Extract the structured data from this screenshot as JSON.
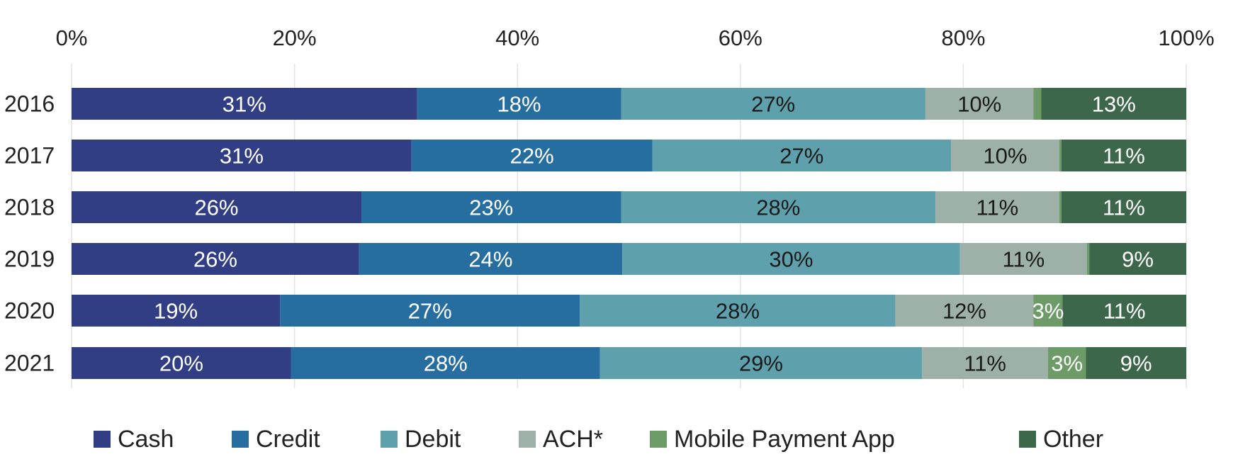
{
  "chart_data": {
    "type": "bar",
    "orientation": "horizontal",
    "stacked": true,
    "title": "",
    "xlabel": "",
    "ylabel": "",
    "xlim": [
      0,
      100
    ],
    "x_ticks": [
      "0%",
      "20%",
      "40%",
      "60%",
      "80%",
      "100%"
    ],
    "x_axis_position": "top",
    "grid": true,
    "legend_position": "bottom",
    "categories": [
      "2016",
      "2017",
      "2018",
      "2019",
      "2020",
      "2021"
    ],
    "series": [
      {
        "name": "Cash",
        "color": "#313e83",
        "label_color": "#ffffff",
        "values": [
          31,
          30.5,
          26,
          25.8,
          18.7,
          19.7
        ],
        "labels": [
          "31%",
          "31%",
          "26%",
          "26%",
          "19%",
          "20%"
        ]
      },
      {
        "name": "Credit",
        "color": "#276ea0",
        "label_color": "#ffffff",
        "values": [
          18.3,
          21.6,
          23.3,
          23.6,
          26.9,
          27.7
        ],
        "labels": [
          "18%",
          "22%",
          "23%",
          "24%",
          "27%",
          "28%"
        ]
      },
      {
        "name": "Debit",
        "color": "#5ea1ac",
        "label_color": "#1a1a1a",
        "values": [
          27.3,
          26.8,
          28.2,
          30.3,
          28.3,
          28.9
        ],
        "labels": [
          "27%",
          "27%",
          "28%",
          "30%",
          "28%",
          "29%"
        ]
      },
      {
        "name": "ACH*",
        "color": "#9eb1a8",
        "label_color": "#1a1a1a",
        "values": [
          9.7,
          9.7,
          11.1,
          11.4,
          12.4,
          11.3
        ],
        "labels": [
          "10%",
          "10%",
          "11%",
          "11%",
          "12%",
          "11%"
        ]
      },
      {
        "name": "Mobile Payment App",
        "color": "#6c9b67",
        "label_color": "#ffffff",
        "values": [
          0.7,
          0.2,
          0.2,
          0.2,
          2.6,
          3.4
        ],
        "labels": [
          "",
          "",
          "",
          "",
          "3%",
          "3%"
        ]
      },
      {
        "name": "Other",
        "color": "#3c674a",
        "label_color": "#ffffff",
        "values": [
          13,
          11.2,
          11.2,
          8.7,
          11.1,
          9.0
        ],
        "labels": [
          "13%",
          "11%",
          "11%",
          "9%",
          "11%",
          "9%"
        ]
      }
    ]
  }
}
